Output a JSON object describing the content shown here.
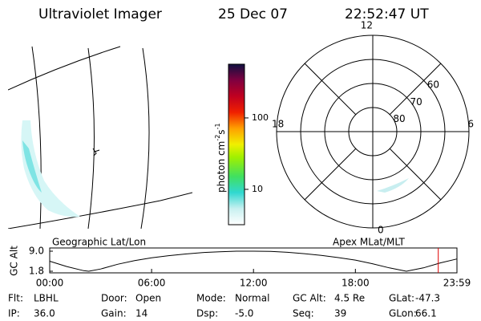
{
  "header": {
    "title": "Ultraviolet Imager",
    "date": "25 Dec 07",
    "time": "22:52:47 UT"
  },
  "colorbar": {
    "label": [
      "photon cm",
      "-2",
      "s",
      "-1"
    ],
    "scale": "log",
    "lim": [
      3.2,
      565
    ],
    "ticks": [
      10,
      100
    ]
  },
  "polar_plot": {
    "lat_lim": [
      90,
      50
    ],
    "lat_rings": [
      80,
      70,
      60
    ],
    "mlt_ticks": [
      12,
      18,
      6,
      0
    ]
  },
  "map_label": "Geographic Lat/Lon",
  "polar_label": "Apex MLat/MLT",
  "altitude_plot": {
    "ylabel": "GC Alt",
    "ylim": [
      1.8,
      9.0
    ],
    "yticks": [
      {
        "value": 9.0,
        "label": "9.0"
      },
      {
        "value": 1.8,
        "label": "1.8"
      }
    ],
    "xlim": [
      0,
      23.98
    ],
    "xticks": [
      {
        "value": 0,
        "label": "00:00"
      },
      {
        "value": 6,
        "label": "06:00"
      },
      {
        "value": 12,
        "label": "12:00"
      },
      {
        "value": 18,
        "label": "18:00"
      },
      {
        "value": 23.98,
        "label": "23:59"
      }
    ],
    "x": [
      0,
      1,
      2,
      2.3,
      3,
      4,
      5,
      6,
      7,
      8,
      9,
      10,
      11,
      12,
      13,
      14,
      15,
      16,
      17,
      18,
      19,
      20,
      21,
      22,
      23,
      23.98
    ],
    "values": [
      5.4,
      3.5,
      2.0,
      1.8,
      2.6,
      4.3,
      5.6,
      6.6,
      7.4,
      8.0,
      8.5,
      8.8,
      9.0,
      9.0,
      8.9,
      8.6,
      8.1,
      7.5,
      6.7,
      5.8,
      4.5,
      3.0,
      1.8,
      3.0,
      4.8,
      6.2
    ],
    "marker_x": 22.88,
    "marker_color": "#e00000"
  },
  "info": {
    "rows": [
      [
        [
          "Flt:",
          "LBHL"
        ],
        [
          "Door:",
          "Open"
        ],
        [
          "Mode:",
          "Normal"
        ],
        [
          "GC Alt:",
          "4.5 Re"
        ],
        [
          "GLat:",
          "-47.3"
        ]
      ],
      [
        [
          "IP:",
          "36.0"
        ],
        [
          "Gain:",
          "14"
        ],
        [
          "Dsp:",
          "-5.0"
        ],
        [
          "Seq:",
          "39"
        ],
        [
          "GLon:",
          "66.1"
        ]
      ]
    ]
  }
}
